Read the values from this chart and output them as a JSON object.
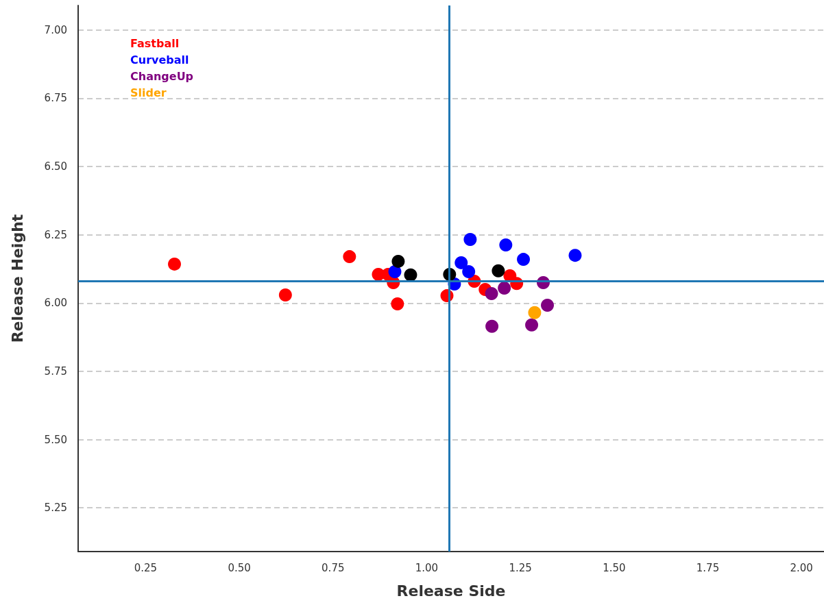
{
  "chart_data": {
    "type": "scatter",
    "xlabel": "Release Side",
    "ylabel": "Release Height",
    "xlim": [
      0.07,
      2.06
    ],
    "ylim": [
      5.09,
      7.09
    ],
    "xticks": [
      {
        "value": 0.25,
        "label": "0.25"
      },
      {
        "value": 0.5,
        "label": "0.50"
      },
      {
        "value": 0.75,
        "label": "0.75"
      },
      {
        "value": 1.0,
        "label": "1.00"
      },
      {
        "value": 1.25,
        "label": "1.25"
      },
      {
        "value": 1.5,
        "label": "1.50"
      },
      {
        "value": 1.75,
        "label": "1.75"
      },
      {
        "value": 2.0,
        "label": "2.00"
      }
    ],
    "yticks": [
      {
        "value": 5.25,
        "label": "5.25"
      },
      {
        "value": 5.5,
        "label": "5.50"
      },
      {
        "value": 5.75,
        "label": "5.75"
      },
      {
        "value": 6.0,
        "label": "6.00"
      },
      {
        "value": 6.25,
        "label": "6.25"
      },
      {
        "value": 6.5,
        "label": "6.50"
      },
      {
        "value": 6.75,
        "label": "6.75"
      },
      {
        "value": 7.0,
        "label": "7.00"
      }
    ],
    "grid": "y",
    "legend": "top left",
    "marker": "circle",
    "ref_lines": [
      {
        "axis": "x",
        "value": 1.065,
        "color": "#1f77b4"
      },
      {
        "axis": "y",
        "value": 6.085,
        "color": "#1f77b4"
      }
    ],
    "series": [
      {
        "name": "Fastball",
        "color": "#ff0000",
        "x": [
          0.327,
          0.623,
          0.794,
          0.871,
          0.897,
          0.911,
          0.922,
          1.054,
          1.127,
          1.156,
          1.222,
          1.24
        ],
        "values": [
          6.143,
          6.03,
          6.17,
          6.105,
          6.105,
          6.075,
          5.997,
          6.027,
          6.08,
          6.05,
          6.1,
          6.072
        ]
      },
      {
        "name": "Curveball",
        "color": "#0000ff",
        "x": [
          1.116,
          1.211,
          1.258,
          1.396,
          1.092,
          1.112,
          1.074,
          0.915
        ],
        "values": [
          6.233,
          6.213,
          6.16,
          6.175,
          6.148,
          6.115,
          6.07,
          6.115
        ]
      },
      {
        "name": "ChangeUp",
        "color": "#800080",
        "x": [
          1.173,
          1.207,
          1.311,
          1.322,
          1.174,
          1.28
        ],
        "values": [
          6.035,
          6.055,
          6.075,
          5.992,
          5.915,
          5.92
        ]
      },
      {
        "name": "Slider",
        "color": "#ffa500",
        "x": [
          1.288
        ],
        "values": [
          5.965
        ]
      },
      {
        "color": "#000000",
        "x": [
          0.924,
          0.957,
          1.061,
          1.191
        ],
        "values": [
          6.153,
          6.103,
          6.105,
          6.118
        ]
      }
    ]
  }
}
